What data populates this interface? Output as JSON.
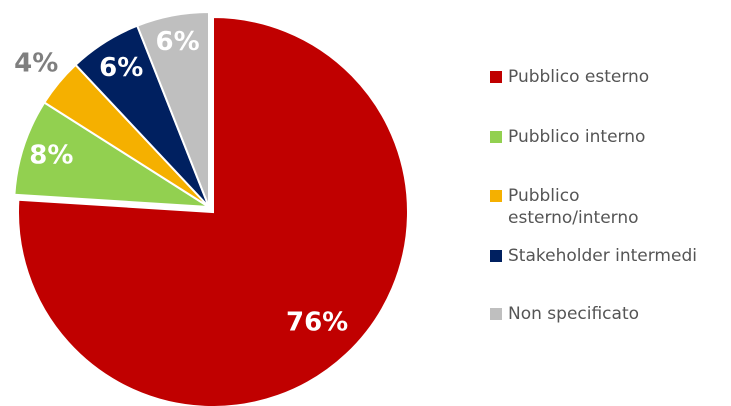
{
  "chart_data": {
    "type": "pie",
    "categories": [
      "Pubblico esterno",
      "Pubblico interno",
      "Pubblico esterno/interno",
      "Stakeholder intermedi",
      "Non specificato"
    ],
    "values": [
      76,
      8,
      4,
      6,
      6
    ],
    "value_labels": [
      "76%",
      "8%",
      "4%",
      "6%",
      "6%"
    ],
    "colors": [
      "#c00000",
      "#92d050",
      "#f5b000",
      "#002060",
      "#bfbfbf"
    ],
    "legend": "right"
  }
}
